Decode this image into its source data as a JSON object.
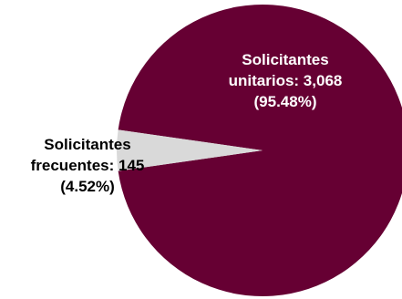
{
  "chart_data": {
    "type": "pie",
    "title": "",
    "legend": "none",
    "slices": [
      {
        "name": "Solicitantes unitarios",
        "value": 3068,
        "percent": 95.48,
        "color": "#660033",
        "label_lines": [
          "Solicitantes",
          "unitarios: 3,068",
          "(95.48%)"
        ],
        "label_color": "#ffffff"
      },
      {
        "name": "Solicitantes frecuentes",
        "value": 145,
        "percent": 4.52,
        "color": "#d9d9d9",
        "label_lines": [
          "Solicitantes",
          "frecuentes: 145",
          "(4.52%)"
        ],
        "label_color": "#000000"
      }
    ]
  }
}
